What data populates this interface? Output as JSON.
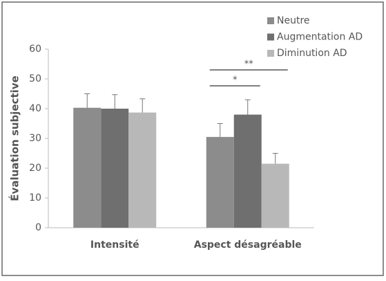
{
  "chart_data": {
    "type": "bar",
    "y_label": "Évaluation subjective",
    "categories": [
      "Intensité",
      "Aspect désagréable"
    ],
    "series": [
      {
        "name": "Neutre",
        "color": "#8c8c8c",
        "values": [
          40.3,
          30.5
        ],
        "errors": [
          4.7,
          4.5
        ]
      },
      {
        "name": "Augmentation AD",
        "color": "#6f6f6f",
        "values": [
          40,
          38
        ],
        "errors": [
          4.7,
          5
        ]
      },
      {
        "name": "Diminution AD",
        "color": "#b8b8b8",
        "values": [
          38.7,
          21.5
        ],
        "errors": [
          4.6,
          3.5
        ]
      }
    ],
    "ylim": [
      0,
      60
    ],
    "yticks": [
      0,
      10,
      20,
      30,
      40,
      50,
      60
    ],
    "annotations": [
      "**",
      "*"
    ],
    "legend": "top-right"
  }
}
